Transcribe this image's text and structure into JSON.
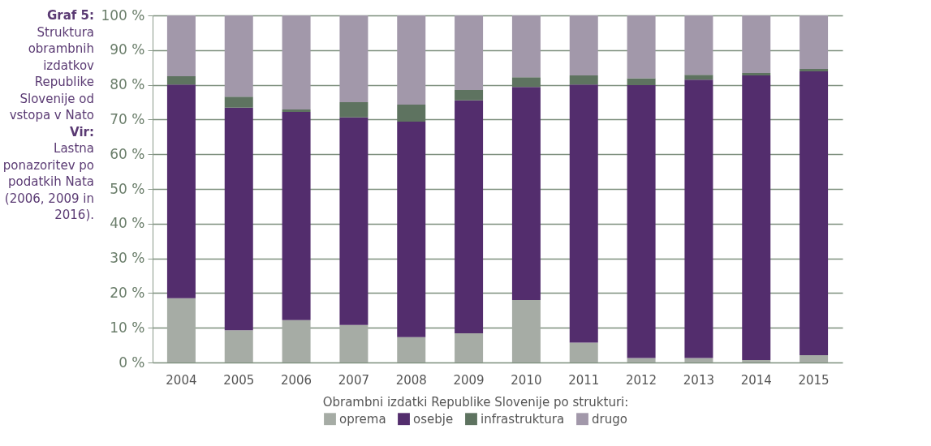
{
  "chart_data": {
    "type": "bar",
    "stacked": true,
    "title": "Graf 5:",
    "subtitle": "Struktura obrambnih izdatkov Republike Slovenije od vstopa v Nato",
    "annotations": [
      "Vir:",
      "Lastna ponazoritev po podatkih Nata (2006, 2009 in 2016)."
    ],
    "legend_title": "Obrambni izdatki Republike Slovenije po strukturi:",
    "legend": "bottom",
    "grid": "y",
    "categories": [
      "2004",
      "2005",
      "2006",
      "2007",
      "2008",
      "2009",
      "2010",
      "2011",
      "2012",
      "2013",
      "2014",
      "2015"
    ],
    "series": [
      {
        "name": "oprema",
        "color": "#a6aca5",
        "values": [
          18.5,
          9.3,
          12.2,
          10.8,
          7.3,
          8.4,
          18.0,
          5.7,
          1.3,
          1.3,
          0.7,
          2.1
        ]
      },
      {
        "name": "osebje",
        "color": "#532d6d",
        "values": [
          61.6,
          64.1,
          60.0,
          59.8,
          62.1,
          67.1,
          61.4,
          74.4,
          78.6,
          80.2,
          82.0,
          81.8
        ]
      },
      {
        "name": "infrastruktura",
        "color": "#5e7360",
        "values": [
          2.4,
          3.2,
          0.7,
          4.4,
          4.9,
          3.0,
          2.8,
          2.6,
          2.0,
          1.4,
          0.7,
          0.7
        ]
      },
      {
        "name": "drugo",
        "color": "#a298aa",
        "values": [
          17.5,
          23.4,
          27.1,
          25.0,
          25.7,
          21.5,
          17.8,
          17.3,
          18.1,
          17.1,
          16.6,
          15.4
        ]
      }
    ],
    "ylim": [
      0,
      100
    ],
    "yticks": [
      {
        "value": 0,
        "label": "0 %"
      },
      {
        "value": 10,
        "label": "10 %"
      },
      {
        "value": 20,
        "label": "20 %"
      },
      {
        "value": 30,
        "label": "30 %"
      },
      {
        "value": 40,
        "label": "40 %"
      },
      {
        "value": 50,
        "label": "50 %"
      },
      {
        "value": 60,
        "label": "60 %"
      },
      {
        "value": 70,
        "label": "70 %"
      },
      {
        "value": 80,
        "label": "80 %"
      },
      {
        "value": 90,
        "label": "90 %"
      },
      {
        "value": 100,
        "label": "100 %"
      }
    ]
  }
}
